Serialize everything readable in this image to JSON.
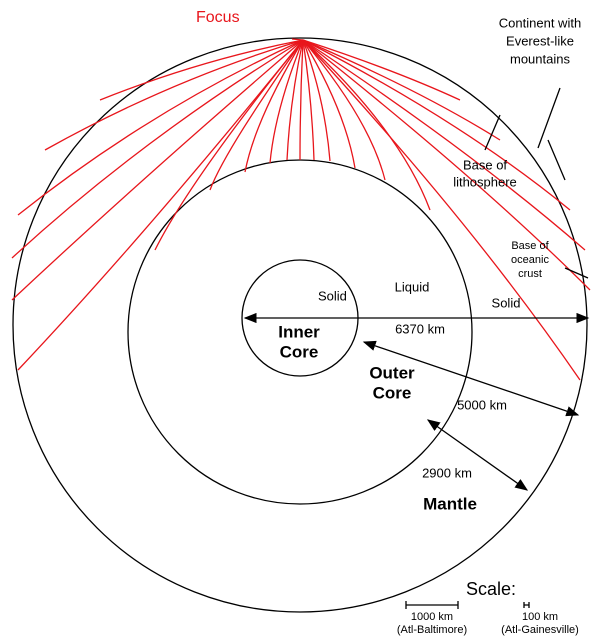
{
  "labels": {
    "focus": "Focus",
    "continent": [
      "Continent with",
      "Everest-like",
      "mountains"
    ],
    "lithosphere": [
      "Base of",
      "lithosphere"
    ],
    "oceanic_crust": [
      "Base of",
      "oceanic",
      "crust"
    ],
    "liquid": "Liquid",
    "solid_inner": "Solid",
    "solid_mantle": "Solid",
    "inner_core": [
      "Inner",
      "Core"
    ],
    "outer_core": [
      "Outer",
      "Core"
    ],
    "mantle": "Mantle",
    "radius_earth": "6370 km",
    "radius_outer_core": "5000 km",
    "depth_mantle": "2900 km"
  },
  "scale": {
    "title": "Scale:",
    "bars": [
      {
        "label": "1000 km",
        "note": "(Atl-Baltimore)"
      },
      {
        "label": "100 km",
        "note": "(Atl-Gainesville)"
      }
    ]
  }
}
